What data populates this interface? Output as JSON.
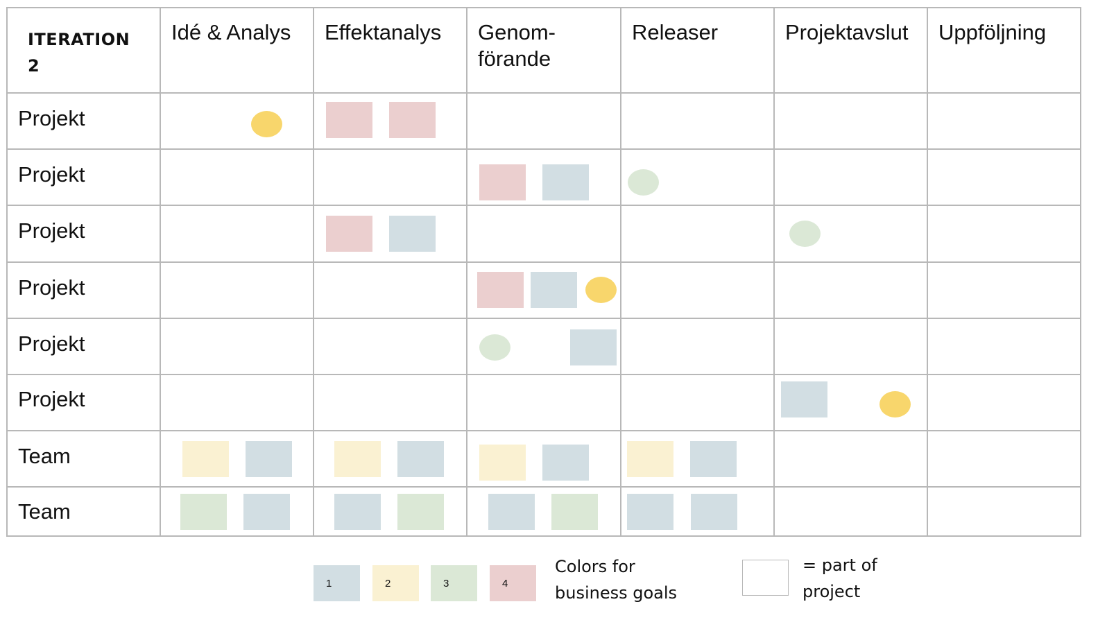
{
  "header": {
    "iteration": "ITERATION\n2",
    "phases": [
      "Idé & Analys",
      "Effektanalys",
      "Genom-\nförande",
      "Releaser",
      "Projektavslut",
      "Uppföljning"
    ]
  },
  "rows": [
    {
      "label": "Projekt"
    },
    {
      "label": "Projekt"
    },
    {
      "label": "Projekt"
    },
    {
      "label": "Projekt"
    },
    {
      "label": "Projekt"
    },
    {
      "label": "Projekt"
    },
    {
      "label": "Team"
    },
    {
      "label": "Team"
    }
  ],
  "colors": {
    "goal_1": "#d2dee3",
    "goal_2": "#faf1d2",
    "goal_3": "#dbe8d6",
    "goal_4": "#ebcfcf",
    "yellow_marker": "#f8d66c",
    "green_marker": "#dbe8d6"
  },
  "legend": {
    "box_labels": [
      "1",
      "2",
      "3",
      "4"
    ],
    "goals_text": "Colors for\nbusiness goals",
    "part_text": "= part of\nproject"
  }
}
